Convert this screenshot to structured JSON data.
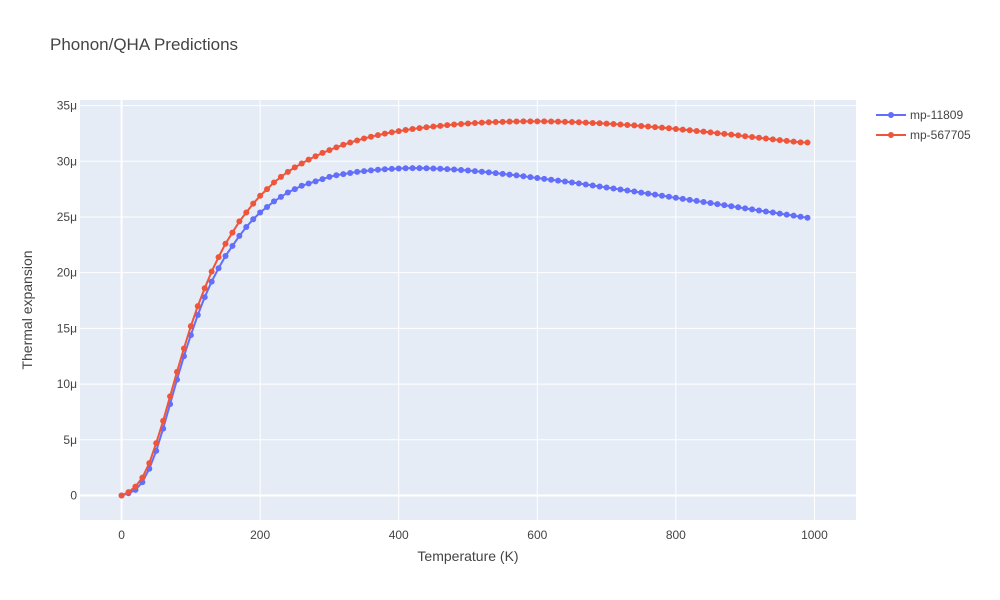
{
  "chart_data": {
    "type": "line",
    "title": "Phonon/QHA Predictions",
    "xlabel": "Temperature (K)",
    "ylabel": "Thermal expansion",
    "xlim": [
      -60,
      1060
    ],
    "ylim": [
      -2.2e-06,
      3.55e-05
    ],
    "x_ticks": [
      {
        "value": 0,
        "label": "0"
      },
      {
        "value": 200,
        "label": "200"
      },
      {
        "value": 400,
        "label": "400"
      },
      {
        "value": 600,
        "label": "600"
      },
      {
        "value": 800,
        "label": "800"
      },
      {
        "value": 1000,
        "label": "1000"
      }
    ],
    "y_ticks": [
      {
        "value": 0,
        "label": "0"
      },
      {
        "value": 5e-06,
        "label": "5μ"
      },
      {
        "value": 1e-05,
        "label": "10μ"
      },
      {
        "value": 1.5e-05,
        "label": "15μ"
      },
      {
        "value": 2e-05,
        "label": "20μ"
      },
      {
        "value": 2.5e-05,
        "label": "25μ"
      },
      {
        "value": 3e-05,
        "label": "30μ"
      },
      {
        "value": 3.5e-05,
        "label": "35μ"
      }
    ],
    "grid": true,
    "legend_position": "top-right",
    "x": [
      0,
      10,
      20,
      30,
      40,
      50,
      60,
      70,
      80,
      90,
      100,
      110,
      120,
      130,
      140,
      150,
      160,
      170,
      180,
      190,
      200,
      210,
      220,
      230,
      240,
      250,
      260,
      270,
      280,
      290,
      300,
      310,
      320,
      330,
      340,
      350,
      360,
      370,
      380,
      390,
      400,
      410,
      420,
      430,
      440,
      450,
      460,
      470,
      480,
      490,
      500,
      510,
      520,
      530,
      540,
      550,
      560,
      570,
      580,
      590,
      600,
      610,
      620,
      630,
      640,
      650,
      660,
      670,
      680,
      690,
      700,
      710,
      720,
      730,
      740,
      750,
      760,
      770,
      780,
      790,
      800,
      810,
      820,
      830,
      840,
      850,
      860,
      870,
      880,
      890,
      900,
      910,
      920,
      930,
      940,
      950,
      960,
      970,
      980,
      990
    ],
    "series": [
      {
        "name": "mp-11809",
        "color": "#636efa",
        "values": [
          0,
          0.2,
          0.5,
          1.2,
          2.4,
          4.0,
          6.0,
          8.2,
          10.4,
          12.5,
          14.4,
          16.2,
          17.8,
          19.2,
          20.4,
          21.5,
          22.4,
          23.3,
          24.1,
          24.8,
          25.4,
          25.9,
          26.4,
          26.8,
          27.2,
          27.5,
          27.8,
          28.0,
          28.2,
          28.4,
          28.6,
          28.75,
          28.85,
          28.95,
          29.05,
          29.12,
          29.18,
          29.24,
          29.28,
          29.32,
          29.35,
          29.37,
          29.38,
          29.38,
          29.37,
          29.35,
          29.33,
          29.3,
          29.26,
          29.22,
          29.17,
          29.12,
          29.06,
          29.0,
          28.94,
          28.87,
          28.8,
          28.73,
          28.66,
          28.58,
          28.5,
          28.42,
          28.34,
          28.26,
          28.18,
          28.09,
          28.01,
          27.92,
          27.83,
          27.74,
          27.65,
          27.56,
          27.47,
          27.38,
          27.29,
          27.19,
          27.1,
          27.01,
          26.91,
          26.82,
          26.72,
          26.63,
          26.53,
          26.44,
          26.34,
          26.25,
          26.15,
          26.06,
          25.96,
          25.87,
          25.77,
          25.68,
          25.58,
          25.49,
          25.4,
          25.3,
          25.21,
          25.12,
          25.02,
          24.93
        ]
      },
      {
        "name": "mp-567705",
        "color": "#ef553b",
        "values": [
          0,
          0.3,
          0.8,
          1.6,
          2.9,
          4.7,
          6.7,
          8.9,
          11.1,
          13.2,
          15.2,
          17.0,
          18.6,
          20.1,
          21.4,
          22.6,
          23.6,
          24.6,
          25.4,
          26.2,
          26.9,
          27.5,
          28.1,
          28.6,
          29.05,
          29.45,
          29.8,
          30.15,
          30.45,
          30.75,
          31.0,
          31.25,
          31.48,
          31.68,
          31.87,
          32.05,
          32.2,
          32.35,
          32.48,
          32.6,
          32.71,
          32.81,
          32.9,
          32.98,
          33.05,
          33.12,
          33.18,
          33.24,
          33.3,
          33.35,
          33.39,
          33.43,
          33.47,
          33.5,
          33.52,
          33.54,
          33.56,
          33.57,
          33.58,
          33.58,
          33.58,
          33.58,
          33.57,
          33.56,
          33.54,
          33.52,
          33.5,
          33.47,
          33.44,
          33.41,
          33.38,
          33.34,
          33.3,
          33.26,
          33.22,
          33.17,
          33.12,
          33.07,
          33.02,
          32.96,
          32.9,
          32.84,
          32.78,
          32.72,
          32.66,
          32.59,
          32.52,
          32.46,
          32.39,
          32.32,
          32.25,
          32.18,
          32.11,
          32.04,
          31.97,
          31.9,
          31.83,
          31.76,
          31.7,
          31.68
        ]
      }
    ],
    "y_unit_scale": 1e-06
  }
}
